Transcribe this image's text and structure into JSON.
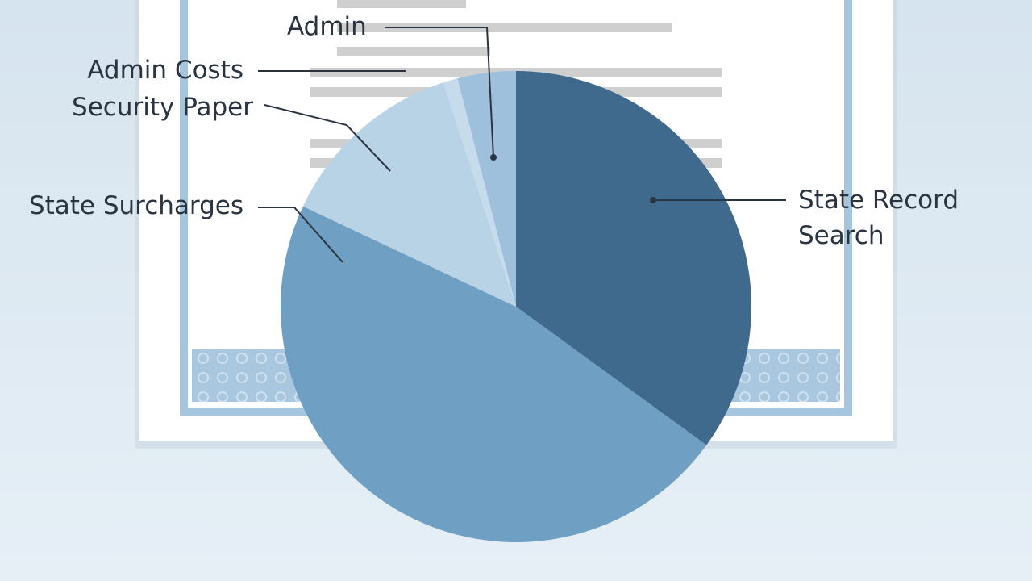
{
  "chart_data": {
    "type": "pie",
    "categories": [
      "State Record Search",
      "State Surcharges",
      "Security Paper",
      "Admin Costs",
      "Admin"
    ],
    "values": [
      35,
      47,
      13,
      1,
      4
    ],
    "colors": [
      "#3f6a8e",
      "#6f9fc2",
      "#b8d2e6",
      "#c6dbec",
      "#9fc0dc"
    ]
  }
}
